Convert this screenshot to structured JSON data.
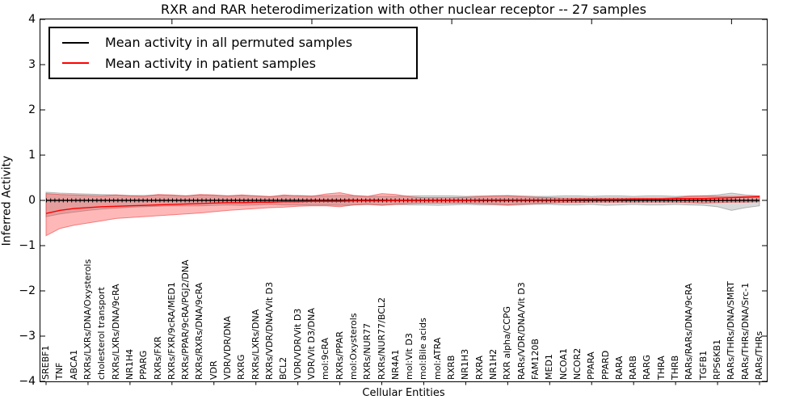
{
  "chart_data": {
    "type": "line",
    "title": "RXR and RAR heterodimerization with other nuclear receptor -- 27 samples",
    "xlabel": "Cellular Entities",
    "ylabel": "Inferred Activity",
    "ylim": [
      -4,
      4
    ],
    "grid": false,
    "legend_position": "upper left",
    "yticks": {
      "values": [
        4,
        3,
        2,
        1,
        0,
        -1,
        -2,
        -3,
        -4
      ],
      "labels": [
        "4",
        "3",
        "2",
        "1",
        "0",
        "−1",
        "−2",
        "−3",
        "−4"
      ]
    },
    "top_tick_indices": [
      9,
      19,
      29,
      39,
      49
    ],
    "bottom_tick_step": 3,
    "categories": [
      "SREBF1",
      "TNF",
      "ABCA1",
      "RXRs/LXRs/DNA/Oxysterols",
      "cholesterol transport",
      "RXRs/LXRs/DNA/9cRA",
      "NR1H4",
      "PPARG",
      "RXRs/FXR",
      "RXRs/FXR/9cRA/MED1",
      "RXRs/PPAR/9cRA/PGJ2/DNA",
      "RXRs/RXRs/DNA/9cRA",
      "VDR",
      "VDR/VDR/DNA",
      "RXRG",
      "RXRs/LXRs/DNA",
      "RXRs/VDR/DNA/Vit D3",
      "BCL2",
      "VDR/VDR/Vit D3",
      "VDR/Vit D3/DNA",
      "mol:9cRA",
      "RXRs/PPAR",
      "mol:Oxysterols",
      "RXRs/NUR77",
      "RXRs/NUR77/BCL2",
      "NR4A1",
      "mol:Vit D3",
      "mol:Bile acids",
      "mol:ATRA",
      "RXRB",
      "NR1H3",
      "RXRA",
      "NR1H2",
      "RXR alpha/CCPG",
      "RARs/VDR/DNA/Vit D3",
      "FAM120B",
      "MED1",
      "NCOA1",
      "NCOR2",
      "PPARA",
      "PPARD",
      "RARA",
      "RARB",
      "RARG",
      "THRA",
      "THRB",
      "RARs/RARs/DNA/9cRA",
      "TGFB1",
      "RPS6KB1",
      "RARs/THRs/DNA/SMRT",
      "RARs/THRs/DNA/Src-1",
      "RARs/THRs"
    ],
    "series": [
      {
        "name": "Mean activity in all permuted samples",
        "color": "#000000",
        "band_fill": "rgba(128,128,128,0.30)",
        "band_edge": "rgba(110,110,110,0.45)",
        "markers": true,
        "values": [
          0,
          0,
          0,
          0,
          0,
          0,
          0,
          0,
          0,
          0,
          0,
          0,
          0,
          0,
          0,
          0,
          0,
          0,
          0,
          0,
          0,
          0,
          0,
          0,
          0,
          0,
          0,
          0,
          0,
          0,
          0,
          0,
          0,
          0,
          0,
          0,
          0,
          0,
          0,
          0,
          0,
          0,
          0,
          0,
          0,
          0,
          0,
          0,
          0,
          0,
          0,
          0
        ],
        "band_upper": [
          0.18,
          0.16,
          0.15,
          0.14,
          0.13,
          0.12,
          0.11,
          0.11,
          0.12,
          0.11,
          0.1,
          0.12,
          0.11,
          0.1,
          0.11,
          0.1,
          0.09,
          0.1,
          0.11,
          0.1,
          0.1,
          0.11,
          0.1,
          0.09,
          0.09,
          0.09,
          0.1,
          0.1,
          0.1,
          0.1,
          0.09,
          0.1,
          0.1,
          0.11,
          0.1,
          0.09,
          0.09,
          0.1,
          0.1,
          0.09,
          0.1,
          0.1,
          0.09,
          0.1,
          0.1,
          0.09,
          0.1,
          0.1,
          0.12,
          0.16,
          0.12,
          0.1
        ],
        "band_lower": [
          -0.36,
          -0.3,
          -0.26,
          -0.22,
          -0.19,
          -0.17,
          -0.15,
          -0.14,
          -0.13,
          -0.12,
          -0.12,
          -0.12,
          -0.11,
          -0.1,
          -0.11,
          -0.1,
          -0.09,
          -0.1,
          -0.1,
          -0.1,
          -0.1,
          -0.11,
          -0.1,
          -0.09,
          -0.1,
          -0.09,
          -0.1,
          -0.1,
          -0.11,
          -0.1,
          -0.09,
          -0.1,
          -0.1,
          -0.11,
          -0.1,
          -0.09,
          -0.09,
          -0.1,
          -0.1,
          -0.09,
          -0.11,
          -0.1,
          -0.09,
          -0.1,
          -0.1,
          -0.09,
          -0.1,
          -0.11,
          -0.14,
          -0.22,
          -0.16,
          -0.12
        ]
      },
      {
        "name": "Mean activity in patient samples",
        "color": "#ff0000",
        "band_fill": "rgba(255,40,40,0.33)",
        "band_edge": "rgba(230,50,50,0.55)",
        "markers": false,
        "values": [
          -0.29,
          -0.22,
          -0.18,
          -0.16,
          -0.14,
          -0.13,
          -0.12,
          -0.11,
          -0.1,
          -0.09,
          -0.08,
          -0.07,
          -0.06,
          -0.05,
          -0.05,
          -0.04,
          -0.04,
          -0.03,
          -0.03,
          -0.02,
          -0.02,
          -0.02,
          -0.01,
          -0.01,
          -0.01,
          0.0,
          0.0,
          0.0,
          0.0,
          0.0,
          0.0,
          0.01,
          0.01,
          0.01,
          0.01,
          0.01,
          0.01,
          0.01,
          0.02,
          0.02,
          0.02,
          0.02,
          0.03,
          0.03,
          0.03,
          0.04,
          0.04,
          0.04,
          0.05,
          0.06,
          0.07,
          0.08
        ],
        "band_upper": [
          0.15,
          0.13,
          0.12,
          0.11,
          0.1,
          0.12,
          0.1,
          0.09,
          0.13,
          0.12,
          0.1,
          0.13,
          0.12,
          0.1,
          0.12,
          0.1,
          0.08,
          0.12,
          0.1,
          0.09,
          0.14,
          0.17,
          0.11,
          0.09,
          0.15,
          0.13,
          0.08,
          0.06,
          0.06,
          0.06,
          0.07,
          0.08,
          0.1,
          0.1,
          0.08,
          0.07,
          0.06,
          0.05,
          0.05,
          0.05,
          0.05,
          0.05,
          0.05,
          0.05,
          0.05,
          0.06,
          0.09,
          0.1,
          0.09,
          0.09,
          0.09,
          0.1
        ],
        "band_lower": [
          -0.78,
          -0.62,
          -0.55,
          -0.5,
          -0.45,
          -0.4,
          -0.38,
          -0.36,
          -0.34,
          -0.32,
          -0.3,
          -0.28,
          -0.25,
          -0.22,
          -0.2,
          -0.18,
          -0.16,
          -0.15,
          -0.13,
          -0.12,
          -0.12,
          -0.14,
          -0.1,
          -0.09,
          -0.11,
          -0.09,
          -0.07,
          -0.06,
          -0.06,
          -0.06,
          -0.06,
          -0.07,
          -0.08,
          -0.1,
          -0.08,
          -0.07,
          -0.06,
          -0.05,
          -0.05,
          -0.04,
          -0.04,
          -0.04,
          -0.04,
          -0.04,
          -0.04,
          -0.04,
          -0.05,
          -0.06,
          -0.05,
          -0.04,
          -0.04,
          -0.03
        ]
      }
    ]
  }
}
